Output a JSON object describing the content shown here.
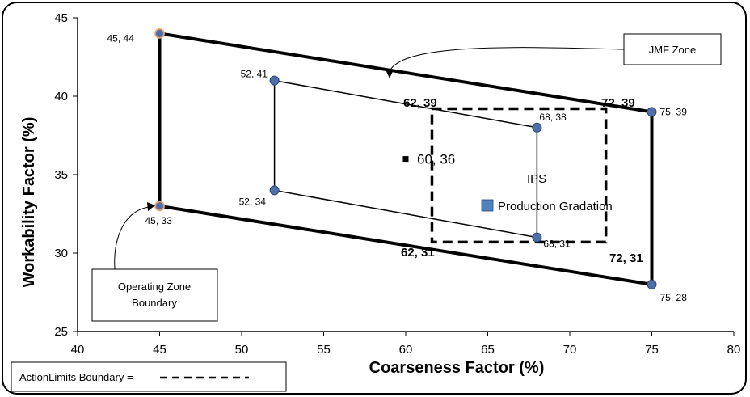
{
  "chart_data": {
    "type": "scatter",
    "title": "",
    "xlabel": "Coarseness Factor (%)",
    "ylabel": "Workability Factor (%)",
    "xlim": [
      40,
      80
    ],
    "ylim": [
      25,
      45
    ],
    "x_ticks": [
      "40",
      "45",
      "50",
      "55",
      "60",
      "65",
      "70",
      "75",
      "80"
    ],
    "y_ticks": [
      "25",
      "30",
      "35",
      "40",
      "45"
    ],
    "grid": false,
    "operating_zone": {
      "points": [
        {
          "x": 45,
          "y": 44,
          "label": "45, 44"
        },
        {
          "x": 75,
          "y": 39,
          "label": "75, 39"
        },
        {
          "x": 75,
          "y": 28,
          "label": "75, 28"
        },
        {
          "x": 45,
          "y": 33,
          "label": "45, 33"
        }
      ]
    },
    "jmf_zone": {
      "points": [
        {
          "x": 52,
          "y": 41,
          "label": "52, 41"
        },
        {
          "x": 68,
          "y": 38,
          "label": "68, 38"
        },
        {
          "x": 68,
          "y": 31,
          "label": "68, 31"
        },
        {
          "x": 52,
          "y": 34,
          "label": "52, 34"
        }
      ]
    },
    "action_limits": {
      "points": [
        {
          "x": 62,
          "y": 39,
          "label": "62, 39"
        },
        {
          "x": 72,
          "y": 39,
          "label": "72, 39"
        },
        {
          "x": 72,
          "y": 31,
          "label": "72, 31"
        },
        {
          "x": 62,
          "y": 31,
          "label": "62, 31"
        }
      ]
    },
    "ips_point": {
      "x": 60,
      "y": 36,
      "label": "60, 36"
    },
    "ips_label": "IPS",
    "legend": {
      "label": "Production Gradation",
      "color": "#4f81bd"
    },
    "callouts": {
      "jmf_zone": "JMF Zone",
      "operating_zone_line1": "Operating Zone",
      "operating_zone_line2": "Boundary",
      "action_limits": "ActionLimits Boundary ="
    },
    "colors": {
      "marker": "#4f6fa8",
      "marker_outline": "#2a4677",
      "orange_outline": "#e6a07a"
    }
  }
}
